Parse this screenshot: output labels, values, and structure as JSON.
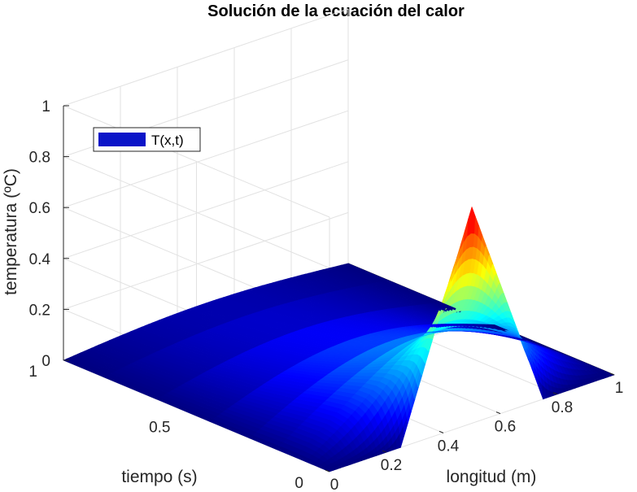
{
  "chart_data": {
    "type": "surface",
    "title": "Solución de la ecuación del calor",
    "xlabel": "longitud (m)",
    "ylabel": "tiempo (s)",
    "zlabel": "temperatura (ºC)",
    "xlim": [
      0,
      1
    ],
    "ylim": [
      0,
      1
    ],
    "zlim": [
      0,
      1
    ],
    "x_ticks": [
      "0",
      "0.2",
      "0.4",
      "0.6",
      "0.8",
      "1"
    ],
    "y_ticks": [
      "0",
      "0.5",
      "1"
    ],
    "z_ticks": [
      "0",
      "0.2",
      "0.4",
      "0.6",
      "0.8",
      "1"
    ],
    "legend": {
      "label": "T(x,t)",
      "placement": "top-left",
      "color": "#0a14c8"
    },
    "grid": true,
    "colormap": "jet",
    "initial_condition": {
      "description": "triangular pulse",
      "x_start": 0.25,
      "x_peak": 0.5,
      "x_end": 0.75,
      "peak_temperature": 0.85
    },
    "boundary_condition": {
      "x": 1,
      "temperature": 0
    },
    "t_profile_shown": 0.08
  }
}
